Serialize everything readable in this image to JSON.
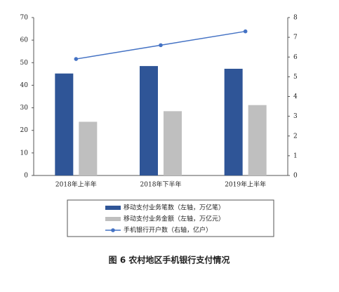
{
  "chart_data": {
    "type": "bar",
    "title": "图 6 农村地区手机银行支付情况",
    "categories": [
      "2018年上半年",
      "2018年下半年",
      "2019年上半年"
    ],
    "series": [
      {
        "name": "移动支付业务笔数（左轴，万亿笔）",
        "color": "#2f5597",
        "values": [
          45.2,
          48.5,
          47.3
        ]
      },
      {
        "name": "移动支付业务金额（左轴，万亿元）",
        "color": "#bfbfbf",
        "values": [
          23.8,
          28.5,
          31.2
        ]
      },
      {
        "name": "手机银行开户数（右轴，亿户）",
        "color": "#4472c4",
        "values": [
          5.9,
          6.6,
          7.3
        ],
        "axis": "y2",
        "type": "line"
      }
    ],
    "ylim": [
      0,
      70
    ],
    "yticks": [
      0,
      10,
      20,
      30,
      40,
      50,
      60,
      70
    ],
    "y2lim": [
      0,
      8
    ],
    "y2ticks": [
      0,
      1,
      2,
      3,
      4,
      5,
      6,
      7,
      8
    ],
    "grid": false
  }
}
